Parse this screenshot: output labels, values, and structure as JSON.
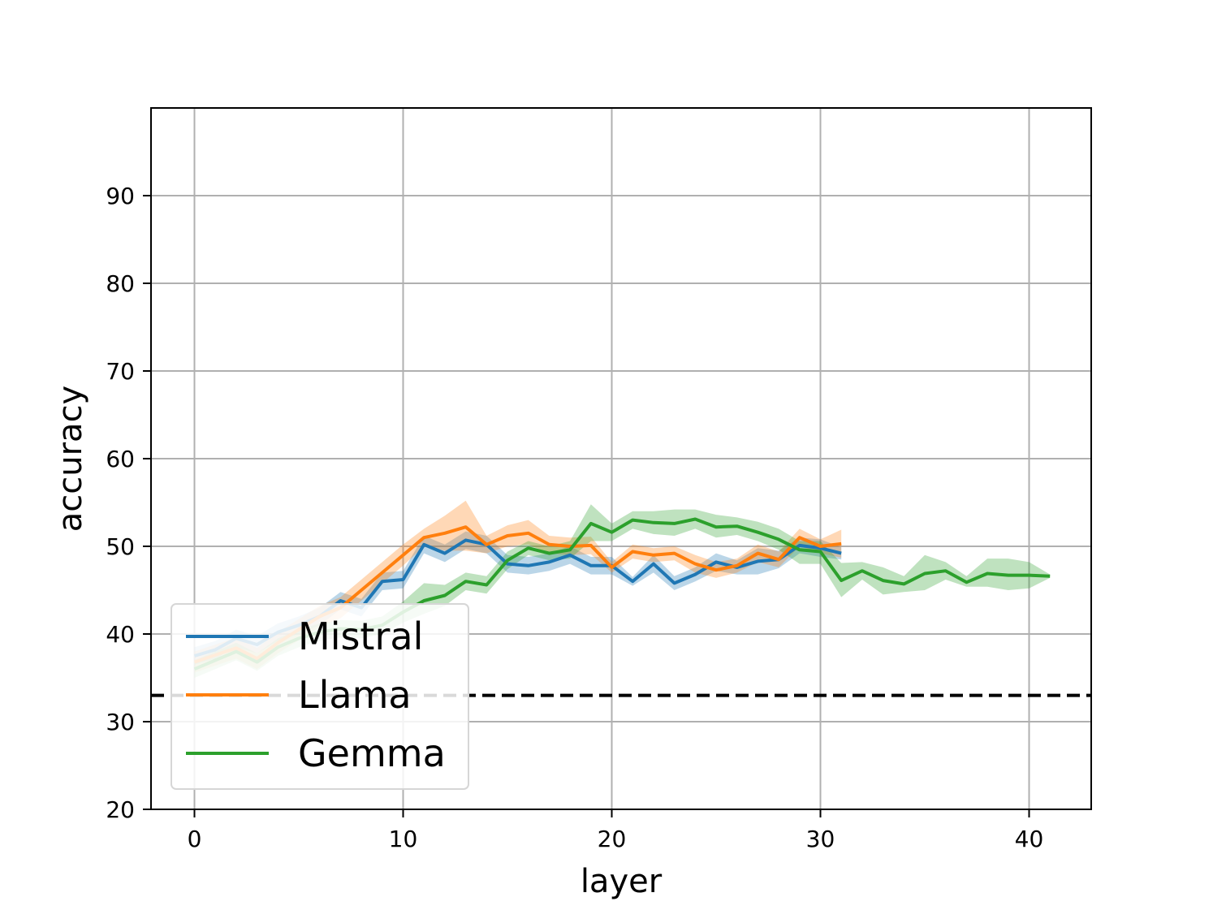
{
  "chart_data": {
    "type": "line",
    "xlabel": "layer",
    "ylabel": "accuracy",
    "xlim": [
      -2,
      43
    ],
    "ylim": [
      20,
      100
    ],
    "xticks": [
      0,
      10,
      20,
      30,
      40
    ],
    "yticks": [
      20,
      30,
      40,
      50,
      60,
      70,
      80,
      90
    ],
    "xtick_labels": [
      "0",
      "10",
      "20",
      "30",
      "40"
    ],
    "ytick_labels": [
      "20",
      "30",
      "40",
      "50",
      "60",
      "70",
      "80",
      "90"
    ],
    "grid": true,
    "legend_position": "lower-left",
    "baseline": {
      "y": 33,
      "style": "dashed",
      "color": "#000000"
    },
    "series": [
      {
        "name": "Mistral",
        "color": "#1f77b4",
        "x": [
          0,
          1,
          2,
          3,
          4,
          5,
          6,
          7,
          8,
          9,
          10,
          11,
          12,
          13,
          14,
          15,
          16,
          17,
          18,
          19,
          20,
          21,
          22,
          23,
          24,
          25,
          26,
          27,
          28,
          29,
          30,
          31
        ],
        "values": [
          37.5,
          38.2,
          39.5,
          38.8,
          40.2,
          41.0,
          42.0,
          43.8,
          43.0,
          46.0,
          46.2,
          50.2,
          49.2,
          50.7,
          50.2,
          48.0,
          47.8,
          48.2,
          49.0,
          47.8,
          47.8,
          46.0,
          48.0,
          45.8,
          46.8,
          48.2,
          47.6,
          48.3,
          48.5,
          50.1,
          49.8,
          49.2
        ],
        "lower": [
          36.5,
          37.2,
          38.5,
          37.8,
          39.2,
          40.0,
          41.0,
          42.8,
          42.0,
          45.0,
          45.2,
          49.2,
          48.2,
          49.7,
          49.2,
          47.0,
          46.8,
          47.2,
          48.0,
          46.8,
          46.8,
          45.5,
          47.0,
          45.0,
          46.0,
          47.2,
          46.8,
          46.8,
          47.5,
          49.2,
          48.8,
          48.5
        ],
        "upper": [
          38.5,
          39.2,
          40.5,
          39.8,
          41.2,
          42.0,
          43.0,
          44.8,
          44.0,
          47.0,
          47.2,
          51.2,
          50.2,
          51.7,
          51.2,
          49.0,
          48.8,
          49.2,
          50.0,
          48.8,
          48.8,
          46.5,
          49.0,
          46.6,
          47.6,
          49.2,
          48.4,
          49.8,
          49.5,
          51.0,
          50.8,
          49.9
        ]
      },
      {
        "name": "Llama",
        "color": "#ff7f0e",
        "x": [
          0,
          1,
          2,
          3,
          4,
          5,
          6,
          7,
          8,
          9,
          10,
          11,
          12,
          13,
          14,
          15,
          16,
          17,
          18,
          19,
          20,
          21,
          22,
          23,
          24,
          25,
          26,
          27,
          28,
          29,
          30,
          31
        ],
        "values": [
          36.8,
          37.6,
          38.4,
          37.2,
          39.0,
          40.5,
          42.0,
          43.0,
          45.0,
          47.0,
          49.0,
          51.0,
          51.5,
          52.2,
          50.2,
          51.2,
          51.5,
          50.2,
          50.0,
          50.1,
          47.6,
          49.4,
          49.0,
          49.2,
          48.0,
          47.3,
          47.8,
          49.2,
          48.5,
          51.0,
          50.0,
          50.3
        ],
        "lower": [
          35.6,
          36.4,
          37.2,
          36.0,
          37.8,
          39.3,
          40.8,
          41.8,
          43.8,
          45.8,
          47.8,
          50.0,
          49.5,
          49.5,
          49.2,
          50.0,
          50.2,
          49.2,
          49.0,
          49.1,
          47.0,
          48.6,
          48.2,
          48.4,
          47.0,
          46.4,
          47.0,
          48.2,
          47.6,
          50.0,
          49.2,
          48.7
        ],
        "upper": [
          38.0,
          38.8,
          39.6,
          38.4,
          40.2,
          41.7,
          43.2,
          44.2,
          46.2,
          48.2,
          50.2,
          52.0,
          53.5,
          55.2,
          51.2,
          52.4,
          53.0,
          51.2,
          51.0,
          51.1,
          48.2,
          50.2,
          49.8,
          50.0,
          49.0,
          48.2,
          48.6,
          50.2,
          49.4,
          52.0,
          50.8,
          51.9
        ]
      },
      {
        "name": "Gemma",
        "color": "#2ca02c",
        "x": [
          0,
          1,
          2,
          3,
          4,
          5,
          6,
          7,
          8,
          9,
          10,
          11,
          12,
          13,
          14,
          15,
          16,
          17,
          18,
          19,
          20,
          21,
          22,
          23,
          24,
          25,
          26,
          27,
          28,
          29,
          30,
          31,
          32,
          33,
          34,
          35,
          36,
          37,
          38,
          39,
          40,
          41
        ],
        "values": [
          36.0,
          37.0,
          38.0,
          36.8,
          38.5,
          39.5,
          40.2,
          40.6,
          40.5,
          41.0,
          42.5,
          43.8,
          44.4,
          46.0,
          45.6,
          48.4,
          49.8,
          49.2,
          49.6,
          52.6,
          51.6,
          53.0,
          52.7,
          52.6,
          53.1,
          52.2,
          52.3,
          51.6,
          50.8,
          49.6,
          49.4,
          46.1,
          47.2,
          46.1,
          45.7,
          46.9,
          47.2,
          45.9,
          46.9,
          46.7,
          46.7,
          46.6
        ],
        "lower": [
          35.0,
          36.0,
          37.0,
          35.8,
          37.5,
          38.5,
          39.2,
          39.6,
          39.5,
          40.0,
          41.3,
          42.3,
          43.2,
          45.0,
          44.6,
          47.4,
          49.0,
          48.4,
          48.6,
          50.6,
          50.6,
          52.0,
          51.4,
          51.2,
          52.0,
          51.0,
          51.3,
          50.6,
          49.6,
          48.0,
          48.0,
          44.2,
          46.2,
          44.5,
          44.8,
          45.0,
          46.2,
          45.4,
          45.4,
          45.0,
          45.2,
          46.4
        ],
        "upper": [
          37.0,
          38.0,
          39.0,
          37.8,
          39.5,
          40.5,
          41.2,
          41.6,
          41.5,
          42.0,
          43.7,
          45.8,
          45.6,
          47.0,
          46.6,
          49.4,
          50.6,
          50.0,
          50.6,
          54.8,
          52.6,
          54.0,
          54.0,
          54.2,
          54.2,
          53.6,
          53.3,
          52.8,
          52.0,
          50.6,
          50.6,
          48.1,
          48.2,
          47.6,
          46.6,
          49.0,
          48.2,
          46.6,
          48.6,
          48.6,
          48.2,
          46.8
        ]
      }
    ]
  }
}
